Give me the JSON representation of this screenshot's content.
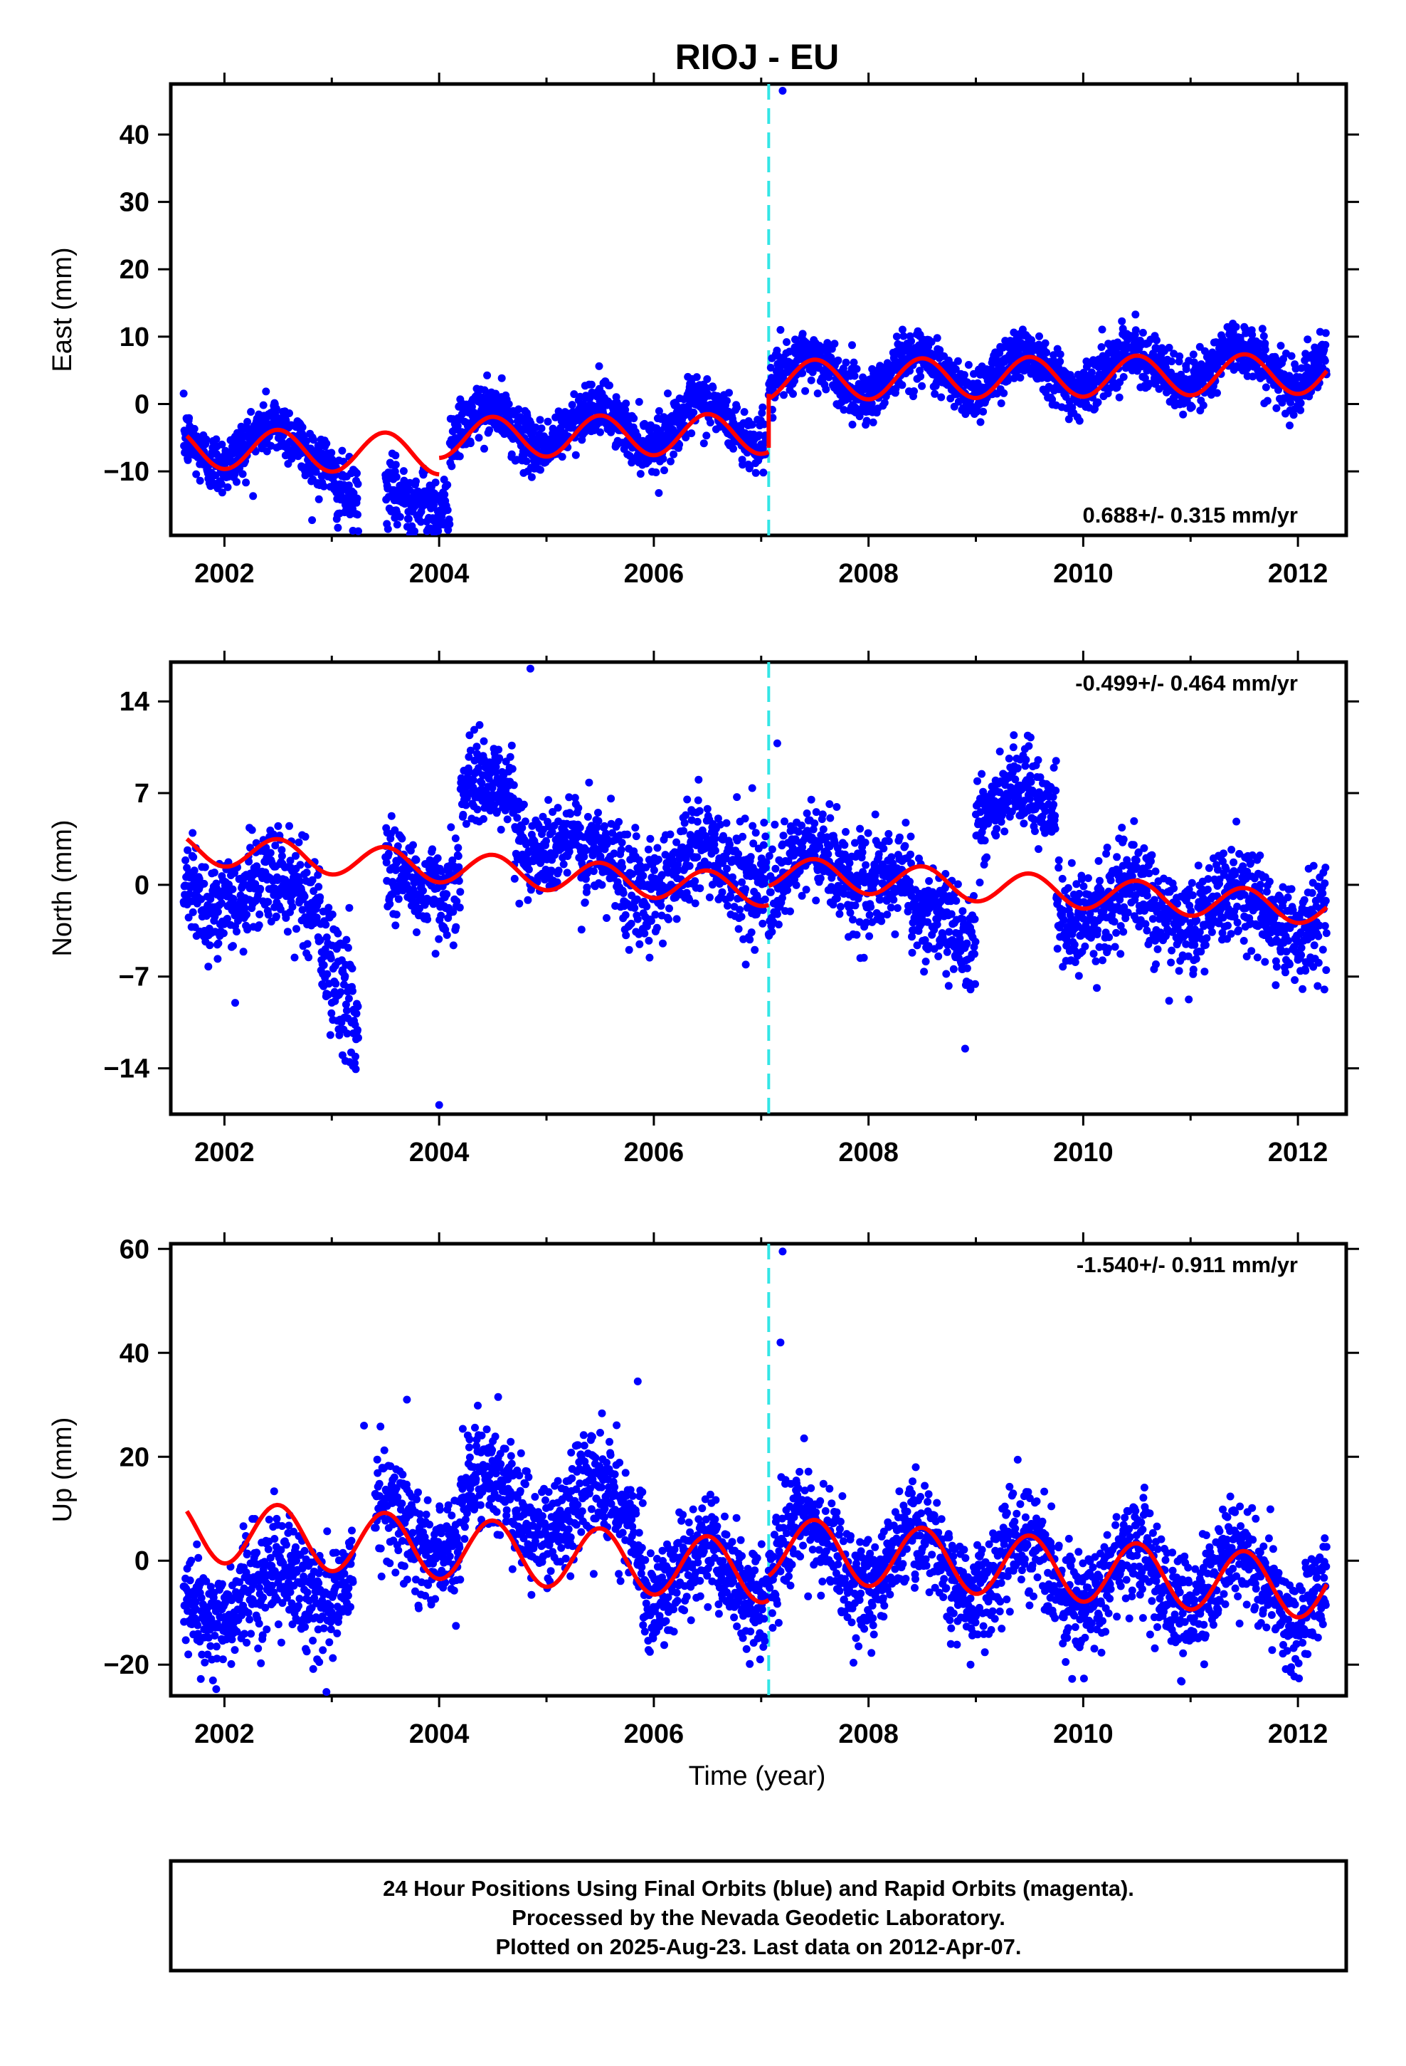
{
  "title": "RIOJ - EU",
  "xlabel": "Time (year)",
  "footer": {
    "line1": "24 Hour Positions Using Final Orbits (blue) and Rapid Orbits (magenta).",
    "line2": "Processed by the Nevada Geodetic Laboratory.",
    "line3": "Plotted on 2025-Aug-23. Last data on 2012-Apr-07."
  },
  "colors": {
    "data": "#0000ff",
    "model": "#ff0000",
    "event": "#33e6e6",
    "frame": "#000000"
  },
  "chart_data": [
    {
      "type": "scatter",
      "ylabel": "East (mm)",
      "rate": "0.688+/- 0.315 mm/yr",
      "rate_position": "bottom-right",
      "xlim": [
        2001.5,
        2012.45
      ],
      "ylim": [
        -19.5,
        47.5
      ],
      "xticks": [
        2002,
        2004,
        2006,
        2008,
        2010,
        2012
      ],
      "xtick_labels": [
        "2002",
        "2004",
        "2006",
        "2008",
        "2010",
        "2012"
      ],
      "yticks": [
        -10,
        0,
        10,
        20,
        30,
        40
      ],
      "ytick_labels": [
        "−10",
        "0",
        "10",
        "20",
        "30",
        "40"
      ],
      "event_x": 2007.07,
      "series": [
        {
          "style": "points",
          "segments": [
            {
              "x0": 2001.62,
              "x1": 2003.0,
              "base": -6,
              "amp": 3,
              "trend": 0,
              "noise": 2.2
            },
            {
              "x0": 2003.0,
              "x1": 2003.25,
              "base": -12,
              "amp": 0,
              "trend": -10,
              "noise": 2.5
            },
            {
              "x0": 2003.5,
              "x1": 2004.1,
              "base": -13,
              "amp": 0,
              "trend": -5,
              "noise": 2.5
            },
            {
              "x0": 2004.1,
              "x1": 2007.05,
              "base": -4,
              "amp": 3,
              "trend": 0.5,
              "noise": 2.0
            },
            {
              "x0": 2007.07,
              "x1": 2012.27,
              "base": 4,
              "amp": 3,
              "trend": 0.35,
              "noise": 2.0
            }
          ],
          "extra_points": [
            [
              2007.2,
              46.5
            ],
            [
              2007.18,
              11
            ],
            [
              2006.4,
              4
            ]
          ]
        },
        {
          "style": "line",
          "segments": [
            {
              "x0": 2001.65,
              "x1": 2004.0,
              "base": -6.5,
              "amp": 3,
              "trend": -0.4
            },
            {
              "x0": 2004.0,
              "x1": 2007.07,
              "base": -5.0,
              "amp": 3,
              "trend": 0.2
            },
            {
              "x0": 2007.07,
              "x1": 2012.27,
              "base": 3.5,
              "amp": 3,
              "trend": 0.2
            }
          ],
          "step": {
            "x": 2007.07,
            "from": -6.5,
            "to": 1.5
          }
        }
      ]
    },
    {
      "type": "scatter",
      "ylabel": "North (mm)",
      "rate": "-0.499+/- 0.464 mm/yr",
      "rate_position": "top-right",
      "xlim": [
        2001.5,
        2012.45
      ],
      "ylim": [
        -17.5,
        17
      ],
      "xticks": [
        2002,
        2004,
        2006,
        2008,
        2010,
        2012
      ],
      "xtick_labels": [
        "2002",
        "2004",
        "2006",
        "2008",
        "2010",
        "2012"
      ],
      "yticks": [
        -14,
        -7,
        0,
        7,
        14
      ],
      "ytick_labels": [
        "−14",
        "−7",
        "0",
        "7",
        "14"
      ],
      "event_x": 2007.07,
      "series": [
        {
          "style": "points",
          "segments": [
            {
              "x0": 2001.62,
              "x1": 2002.9,
              "base": -0.5,
              "amp": 1.2,
              "trend": 0,
              "noise": 1.8
            },
            {
              "x0": 2002.9,
              "x1": 2003.25,
              "base": -5,
              "amp": 0,
              "trend": -15,
              "noise": 2.5
            },
            {
              "x0": 2003.5,
              "x1": 2004.2,
              "base": 0.5,
              "amp": 1,
              "trend": 0,
              "noise": 1.8
            },
            {
              "x0": 2004.2,
              "x1": 2004.7,
              "base": 7,
              "amp": 1,
              "trend": 0,
              "noise": 1.5
            },
            {
              "x0": 2004.7,
              "x1": 2005.3,
              "base": 3.5,
              "amp": 1,
              "trend": 0,
              "noise": 1.6
            },
            {
              "x0": 2005.3,
              "x1": 2007.05,
              "base": 0.8,
              "amp": 1.5,
              "trend": 0.5,
              "noise": 2.0
            },
            {
              "x0": 2007.07,
              "x1": 2007.4,
              "base": -1,
              "amp": 1,
              "trend": 8,
              "noise": 2.0
            },
            {
              "x0": 2007.4,
              "x1": 2008.4,
              "base": 2,
              "amp": 1,
              "trend": -2,
              "noise": 1.8
            },
            {
              "x0": 2008.4,
              "x1": 2009.0,
              "base": -3,
              "amp": 1,
              "trend": 0,
              "noise": 1.8
            },
            {
              "x0": 2009.0,
              "x1": 2009.75,
              "base": 6,
              "amp": 1,
              "trend": 0,
              "noise": 1.8
            },
            {
              "x0": 2009.75,
              "x1": 2012.27,
              "base": -1.5,
              "amp": 1.5,
              "trend": -0.3,
              "noise": 1.8
            }
          ],
          "extra_points": [
            [
              2004.85,
              16.5
            ],
            [
              2004.0,
              -16.8
            ],
            [
              2007.15,
              10.8
            ],
            [
              2009.35,
              10.5
            ],
            [
              2008.9,
              -12.5
            ],
            [
              2003.1,
              -13
            ],
            [
              2002.1,
              -9
            ]
          ]
        },
        {
          "style": "line",
          "segments": [
            {
              "x0": 2001.65,
              "x1": 2007.07,
              "base": 2.8,
              "amp": 1.2,
              "trend": -0.6
            },
            {
              "x0": 2007.07,
              "x1": 2012.27,
              "base": 1.0,
              "amp": 1.2,
              "trend": -0.55
            }
          ]
        }
      ]
    },
    {
      "type": "scatter",
      "ylabel": "Up (mm)",
      "rate": "-1.540+/- 0.911 mm/yr",
      "rate_position": "top-right",
      "xlim": [
        2001.5,
        2012.45
      ],
      "ylim": [
        -26,
        61
      ],
      "xticks": [
        2002,
        2004,
        2006,
        2008,
        2010,
        2012
      ],
      "xtick_labels": [
        "2002",
        "2004",
        "2006",
        "2008",
        "2010",
        "2012"
      ],
      "yticks": [
        -20,
        0,
        20,
        40,
        60
      ],
      "ytick_labels": [
        "−20",
        "0",
        "20",
        "40",
        "60"
      ],
      "event_x": 2007.07,
      "series": [
        {
          "style": "points",
          "segments": [
            {
              "x0": 2001.62,
              "x1": 2003.2,
              "base": -9,
              "amp": 4,
              "trend": 4,
              "noise": 5
            },
            {
              "x0": 2003.4,
              "x1": 2004.2,
              "base": 8,
              "amp": 5,
              "trend": -4,
              "noise": 5
            },
            {
              "x0": 2004.2,
              "x1": 2005.9,
              "base": 12,
              "amp": 6,
              "trend": -2,
              "noise": 5
            },
            {
              "x0": 2005.9,
              "x1": 2007.05,
              "base": -3,
              "amp": 6,
              "trend": 0,
              "noise": 5
            },
            {
              "x0": 2007.07,
              "x1": 2012.27,
              "base": 2,
              "amp": 6,
              "trend": -1.5,
              "noise": 5
            }
          ],
          "extra_points": [
            [
              2007.2,
              59.5
            ],
            [
              2007.18,
              42
            ],
            [
              2004.55,
              31.5
            ],
            [
              2005.85,
              34.5
            ],
            [
              2003.7,
              31
            ],
            [
              2003.3,
              26
            ],
            [
              2008.95,
              -20
            ]
          ]
        },
        {
          "style": "line",
          "segments": [
            {
              "x0": 2001.65,
              "x1": 2007.07,
              "base": 6,
              "amp": 6,
              "trend": -1.5
            },
            {
              "x0": 2007.07,
              "x1": 2012.27,
              "base": 2.5,
              "amp": 6,
              "trend": -1.5
            }
          ]
        }
      ]
    }
  ]
}
